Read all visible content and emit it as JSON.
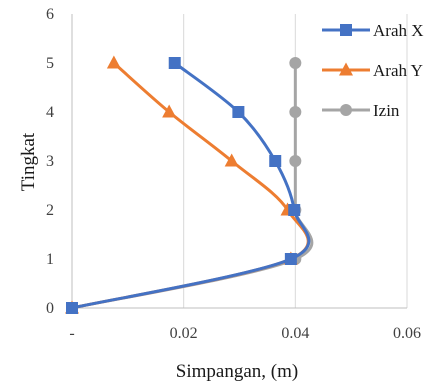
{
  "chart_data": {
    "type": "line",
    "title": "",
    "xlabel": "Simpangan, (m)",
    "ylabel": "Tingkat",
    "xlim": [
      0,
      0.06
    ],
    "ylim": [
      0,
      6
    ],
    "x_tick_labels": [
      "-",
      "0.02",
      "0.04",
      "0.06"
    ],
    "y_tick_labels": [
      "0",
      "1",
      "2",
      "3",
      "4",
      "5",
      "6"
    ],
    "grid": "vertical",
    "legend_position": "top-right",
    "series": [
      {
        "name": "Arah X",
        "color": "#4472C4",
        "marker": "square",
        "points": [
          {
            "x": 0.0,
            "y": 0
          },
          {
            "x": 0.0392,
            "y": 1
          },
          {
            "x": 0.0398,
            "y": 2
          },
          {
            "x": 0.0364,
            "y": 3
          },
          {
            "x": 0.0298,
            "y": 4
          },
          {
            "x": 0.0184,
            "y": 5
          }
        ]
      },
      {
        "name": "Arah Y",
        "color": "#ED7D31",
        "marker": "triangle",
        "points": [
          {
            "x": 0.0,
            "y": 0
          },
          {
            "x": 0.0392,
            "y": 1
          },
          {
            "x": 0.0386,
            "y": 2
          },
          {
            "x": 0.0286,
            "y": 3
          },
          {
            "x": 0.0174,
            "y": 4
          },
          {
            "x": 0.0075,
            "y": 5
          }
        ]
      },
      {
        "name": "Izin",
        "color": "#A5A5A5",
        "marker": "circle",
        "points": [
          {
            "x": 0.0,
            "y": 0
          },
          {
            "x": 0.04,
            "y": 1
          },
          {
            "x": 0.04,
            "y": 2
          },
          {
            "x": 0.04,
            "y": 3
          },
          {
            "x": 0.04,
            "y": 4
          },
          {
            "x": 0.04,
            "y": 5
          }
        ]
      }
    ]
  }
}
